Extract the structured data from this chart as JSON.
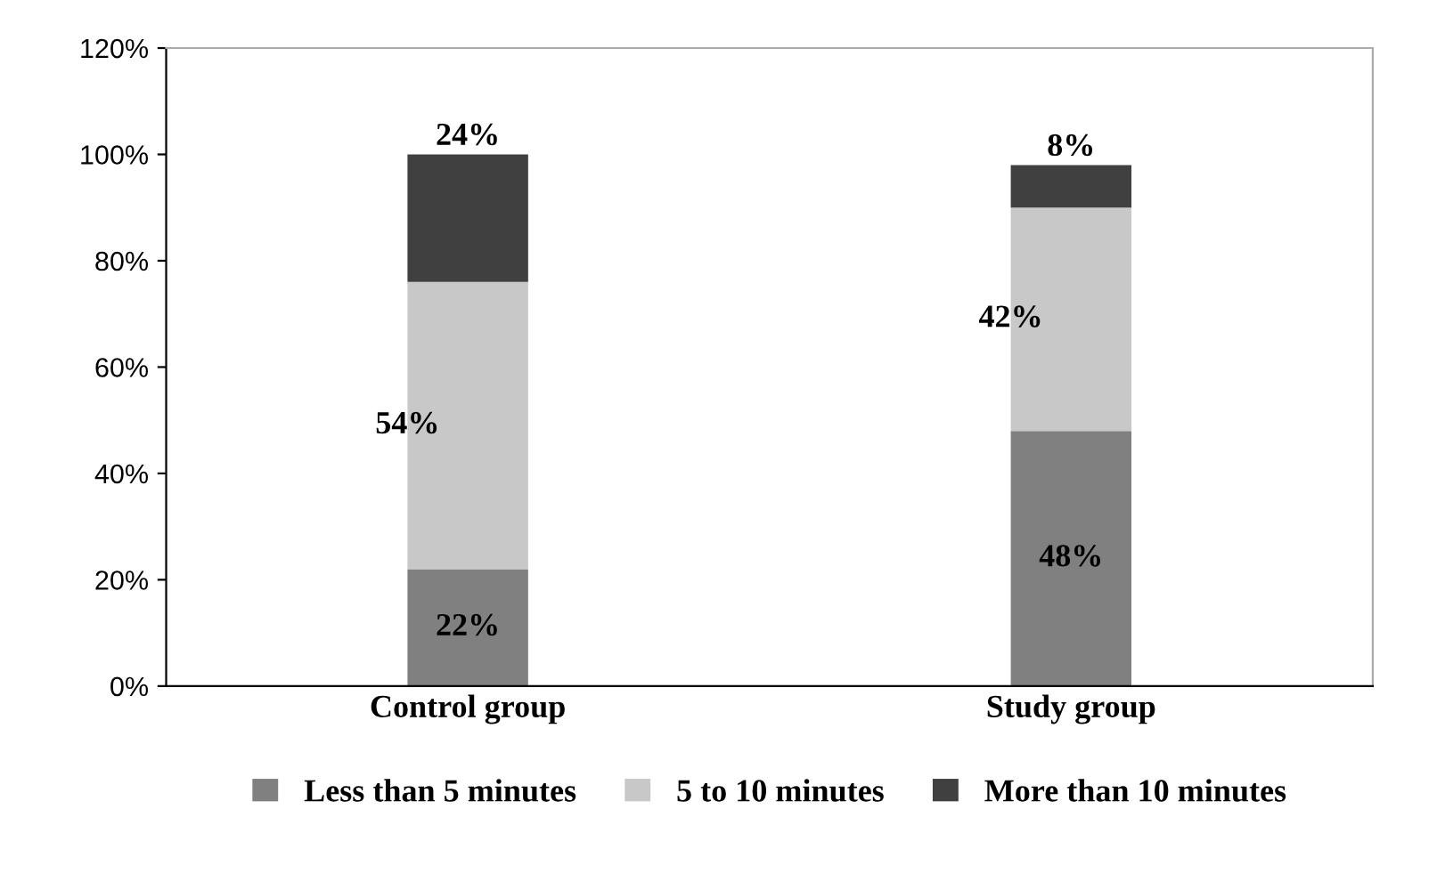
{
  "chart_data": {
    "type": "bar",
    "stacked": true,
    "categories": [
      "Control group",
      "Study group"
    ],
    "series": [
      {
        "name": "Less than 5 minutes",
        "color": "#808080",
        "values": [
          22,
          48
        ],
        "value_labels": [
          "22%",
          "48%"
        ]
      },
      {
        "name": "5 to 10 minutes",
        "color": "#c8c8c8",
        "values": [
          54,
          42
        ],
        "value_labels": [
          "54%",
          "42%"
        ]
      },
      {
        "name": "More than 10 minutes",
        "color": "#404040",
        "values": [
          24,
          8
        ],
        "value_labels": [
          "24%",
          "8%"
        ]
      }
    ],
    "ylim": [
      0,
      120
    ],
    "yticks": [
      {
        "value": 0,
        "label": "0%"
      },
      {
        "value": 20,
        "label": "20%"
      },
      {
        "value": 40,
        "label": "40%"
      },
      {
        "value": 60,
        "label": "60%"
      },
      {
        "value": 80,
        "label": "80%"
      },
      {
        "value": 100,
        "label": "100%"
      },
      {
        "value": 120,
        "label": "120%"
      }
    ],
    "grid": false,
    "legend": "bottom"
  }
}
